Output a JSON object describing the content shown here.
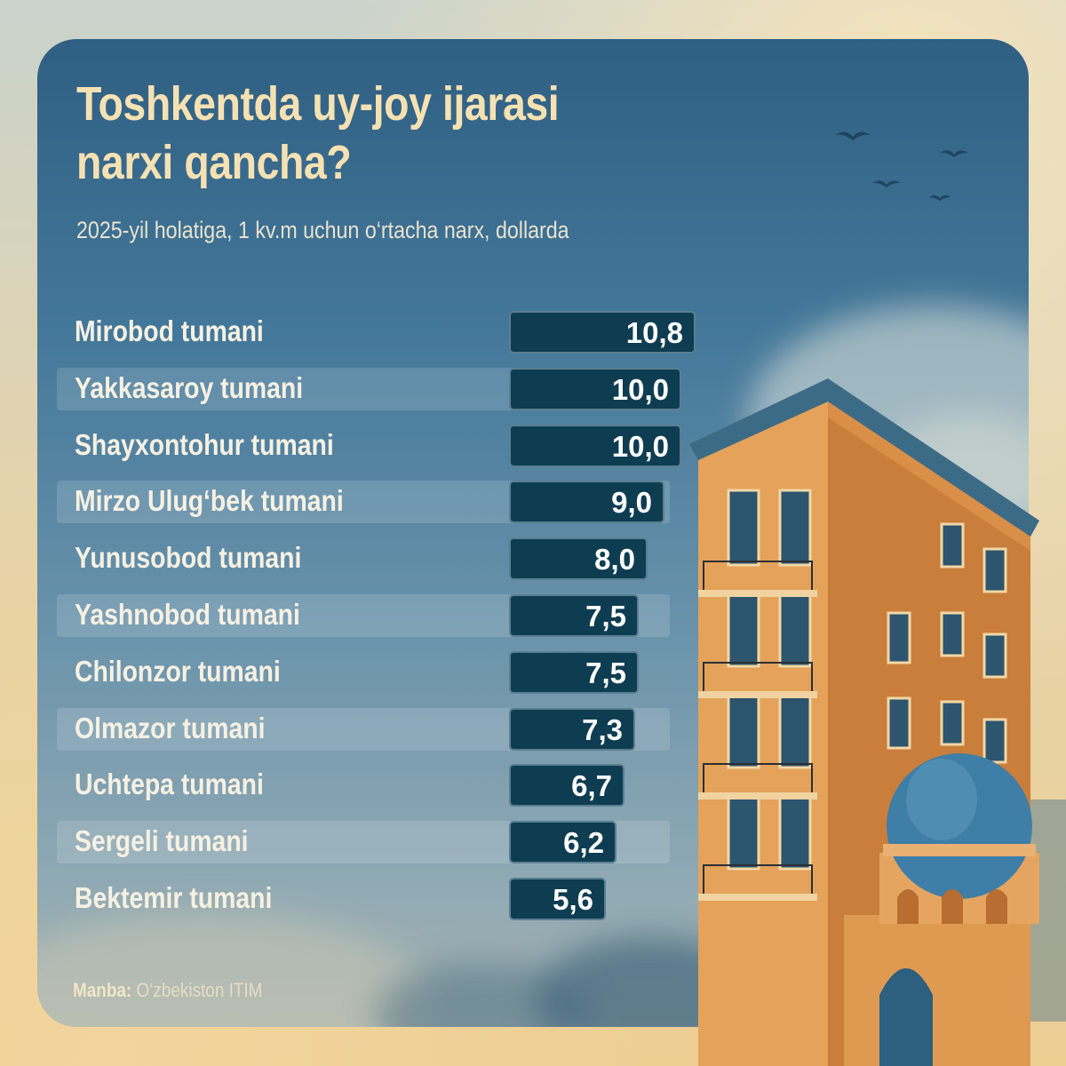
{
  "title_line1": "Toshkentda uy-joy ijarasi",
  "title_line2": "narxi qancha?",
  "subtitle": "2025-yil holatiga, 1 kv.m uchun o‘rtacha narx, dollarda",
  "source_label": "Manba:",
  "source_text": "O‘zbekiston ITIM",
  "colors": {
    "bar": "#0e3d52",
    "title": "#f6e1b3",
    "panel": "#3f7294",
    "building": "#e29c52",
    "dome": "#3f7ea6"
  },
  "chart_data": {
    "type": "bar",
    "orientation": "horizontal",
    "title": "Toshkentda uy-joy ijarasi narxi qancha?",
    "subtitle": "2025-yil holatiga, 1 kv.m uchun o‘rtacha narx, dollarda",
    "categories": [
      "Mirobod tumani",
      "Yakkasaroy tumani",
      "Shayxontohur tumani",
      "Mirzo Ulug‘bek tumani",
      "Yunusobod tumani",
      "Yashnobod tumani",
      "Chilonzor tumani",
      "Olmazor tumani",
      "Uchtepa tumani",
      "Sergeli tumani",
      "Bektemir tumani"
    ],
    "values": [
      10.8,
      10.0,
      10.0,
      9.0,
      8.0,
      7.5,
      7.5,
      7.3,
      6.7,
      6.2,
      5.6
    ],
    "value_labels": [
      "10,8",
      "10,0",
      "10,0",
      "9,0",
      "8,0",
      "7,5",
      "7,5",
      "7,3",
      "6,7",
      "6,2",
      "5,6"
    ],
    "xlim": [
      0,
      10.8
    ],
    "grid": false,
    "legend": "none"
  }
}
